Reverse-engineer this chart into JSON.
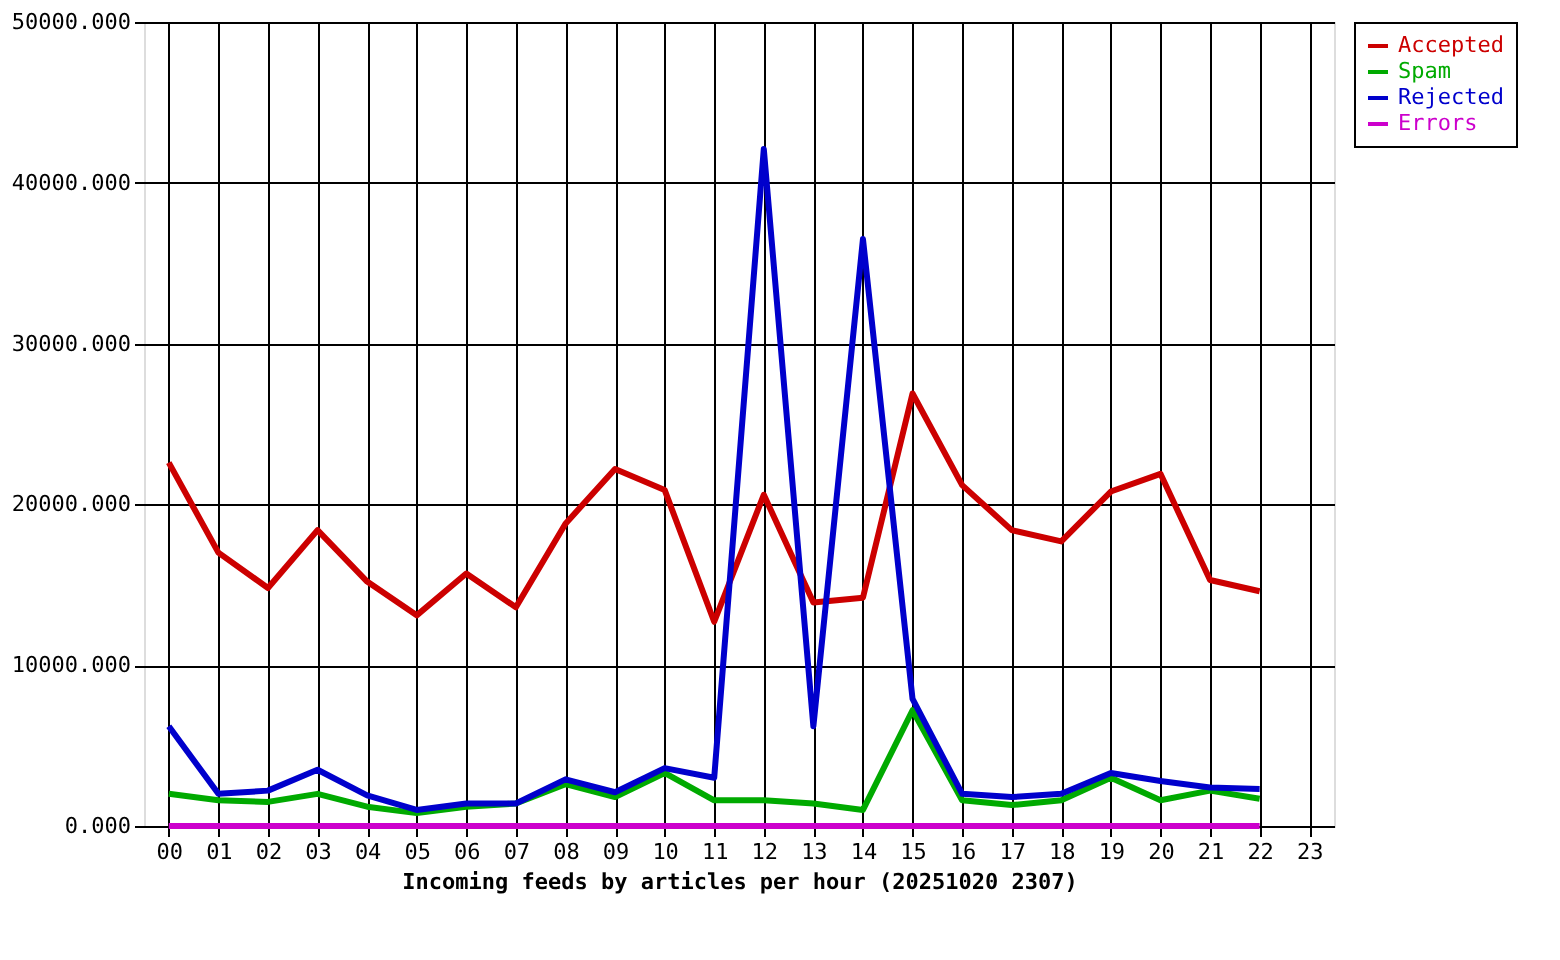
{
  "chart_data": {
    "type": "line",
    "xlabel": "Incoming feeds by articles per hour (20251020 2307)",
    "categories": [
      "00",
      "01",
      "02",
      "03",
      "04",
      "05",
      "06",
      "07",
      "08",
      "09",
      "10",
      "11",
      "12",
      "13",
      "14",
      "15",
      "16",
      "17",
      "18",
      "19",
      "20",
      "21",
      "22",
      "23"
    ],
    "series": [
      {
        "name": "Accepted",
        "color": "#cc0000",
        "values": [
          22600,
          17000,
          14800,
          18400,
          15200,
          13100,
          15700,
          13600,
          18800,
          22200,
          20900,
          12700,
          20600,
          13900,
          14200,
          26900,
          21200,
          18400,
          17700,
          20800,
          21900,
          15300,
          14600,
          null
        ]
      },
      {
        "name": "Spam",
        "color": "#00aa00",
        "values": [
          2000,
          1600,
          1500,
          2000,
          1200,
          800,
          1200,
          1400,
          2600,
          1800,
          3300,
          1600,
          1600,
          1400,
          1000,
          7200,
          1600,
          1300,
          1600,
          3000,
          1600,
          2200,
          1700,
          null
        ]
      },
      {
        "name": "Rejected",
        "color": "#0000cc",
        "values": [
          6200,
          2000,
          2200,
          3500,
          1900,
          1000,
          1400,
          1400,
          2900,
          2100,
          3600,
          3000,
          42100,
          6200,
          36500,
          7900,
          2000,
          1800,
          2000,
          3300,
          2800,
          2400,
          2300,
          null
        ]
      },
      {
        "name": "Errors",
        "color": "#cc00cc",
        "values": [
          0,
          0,
          0,
          0,
          0,
          0,
          0,
          0,
          0,
          0,
          0,
          0,
          0,
          0,
          0,
          0,
          0,
          0,
          0,
          0,
          0,
          0,
          0,
          null
        ]
      }
    ],
    "ylim": [
      0,
      50000
    ],
    "yticks": [
      {
        "value": 0,
        "label": "0.000"
      },
      {
        "value": 10000,
        "label": "10000.000"
      },
      {
        "value": 20000,
        "label": "20000.000"
      },
      {
        "value": 30000,
        "label": "30000.000"
      },
      {
        "value": 40000,
        "label": "40000.000"
      },
      {
        "value": 50000,
        "label": "50000.000"
      }
    ],
    "grid": true,
    "legend": "top right",
    "marker": "none",
    "line_style": "solid"
  }
}
